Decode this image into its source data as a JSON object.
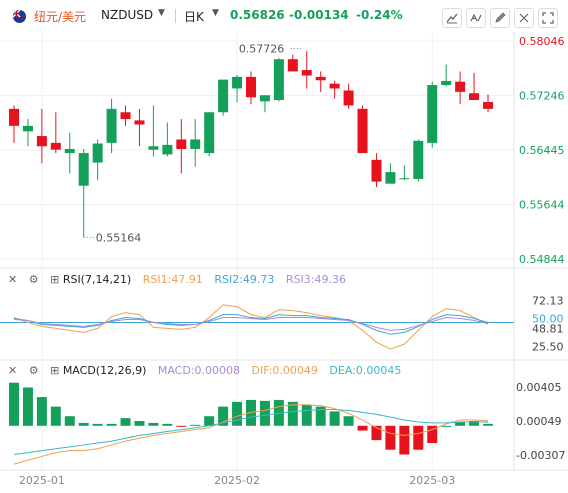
{
  "header": {
    "pair_name": "纽元/美元",
    "symbol": "NZDUSD",
    "timeframe": "日K",
    "last_price": "0.56826",
    "change": "-0.00134",
    "change_pct": "-0.24%",
    "icons": [
      "trend-icon",
      "measure-icon",
      "edit-icon",
      "eye-off-icon",
      "fullscreen-icon"
    ]
  },
  "colors": {
    "up": "#14a05a",
    "down": "#e6131f",
    "accent": "#e8561e"
  },
  "rsi_panel": {
    "title": "RSI(7,14,21)",
    "rsi1": "RSI1:47.91",
    "rsi2": "RSI2:49.73",
    "rsi3": "RSI3:49.36",
    "colors": {
      "rsi1": "#f0a050",
      "rsi2": "#3aa8d8",
      "rsi3": "#a98ad8"
    }
  },
  "macd_panel": {
    "title": "MACD(12,26,9)",
    "macd": "MACD:0.00008",
    "dif": "DIF:0.00049",
    "dea": "DEA:0.00045",
    "colors": {
      "macd": "#a98ad8",
      "dif": "#f0a050",
      "dea": "#3ab8c8"
    }
  },
  "chart_data": [
    {
      "type": "candlestick",
      "title": "NZDUSD 日K",
      "price_axis_ticks": [
        "0.58046",
        "0.57246",
        "0.56445",
        "0.55644",
        "0.54844"
      ],
      "highlighted_tick": "0.58046",
      "ylim": [
        0.5471,
        0.5818
      ],
      "annotations": [
        {
          "label": "0.57726",
          "candle": 20
        },
        {
          "label": "0.55164",
          "candle": 5
        }
      ],
      "x_labels": [
        {
          "label": "2025-01",
          "candle": 2
        },
        {
          "label": "2025-02",
          "candle": 16
        },
        {
          "label": "2025-03",
          "candle": 30
        }
      ],
      "candles": [
        {
          "o": 0.5705,
          "h": 0.571,
          "l": 0.5655,
          "c": 0.568
        },
        {
          "o": 0.5672,
          "h": 0.569,
          "l": 0.565,
          "c": 0.568
        },
        {
          "o": 0.5665,
          "h": 0.5705,
          "l": 0.5625,
          "c": 0.565
        },
        {
          "o": 0.5655,
          "h": 0.57,
          "l": 0.564,
          "c": 0.5645
        },
        {
          "o": 0.564,
          "h": 0.567,
          "l": 0.561,
          "c": 0.5646
        },
        {
          "o": 0.5592,
          "h": 0.5646,
          "l": 0.5516,
          "c": 0.564
        },
        {
          "o": 0.5626,
          "h": 0.566,
          "l": 0.56,
          "c": 0.5654
        },
        {
          "o": 0.5655,
          "h": 0.572,
          "l": 0.564,
          "c": 0.5705
        },
        {
          "o": 0.57,
          "h": 0.571,
          "l": 0.568,
          "c": 0.569
        },
        {
          "o": 0.5688,
          "h": 0.5705,
          "l": 0.565,
          "c": 0.5682
        },
        {
          "o": 0.5645,
          "h": 0.571,
          "l": 0.5635,
          "c": 0.565
        },
        {
          "o": 0.5638,
          "h": 0.5685,
          "l": 0.5635,
          "c": 0.5652
        },
        {
          "o": 0.566,
          "h": 0.569,
          "l": 0.561,
          "c": 0.5646
        },
        {
          "o": 0.5646,
          "h": 0.569,
          "l": 0.562,
          "c": 0.566
        },
        {
          "o": 0.564,
          "h": 0.57,
          "l": 0.5635,
          "c": 0.57
        },
        {
          "o": 0.57,
          "h": 0.5745,
          "l": 0.5695,
          "c": 0.5748
        },
        {
          "o": 0.5735,
          "h": 0.5755,
          "l": 0.5715,
          "c": 0.5752
        },
        {
          "o": 0.5752,
          "h": 0.576,
          "l": 0.5712,
          "c": 0.5722
        },
        {
          "o": 0.5716,
          "h": 0.5725,
          "l": 0.57,
          "c": 0.5725
        },
        {
          "o": 0.5718,
          "h": 0.578,
          "l": 0.5716,
          "c": 0.5778
        },
        {
          "o": 0.5778,
          "h": 0.5785,
          "l": 0.576,
          "c": 0.576
        },
        {
          "o": 0.5762,
          "h": 0.579,
          "l": 0.5735,
          "c": 0.5754
        },
        {
          "o": 0.5752,
          "h": 0.576,
          "l": 0.573,
          "c": 0.5747
        },
        {
          "o": 0.5742,
          "h": 0.5746,
          "l": 0.572,
          "c": 0.5735
        },
        {
          "o": 0.5732,
          "h": 0.5742,
          "l": 0.5705,
          "c": 0.571
        },
        {
          "o": 0.5705,
          "h": 0.571,
          "l": 0.564,
          "c": 0.564
        },
        {
          "o": 0.563,
          "h": 0.564,
          "l": 0.559,
          "c": 0.5598
        },
        {
          "o": 0.5595,
          "h": 0.5625,
          "l": 0.5596,
          "c": 0.5612
        },
        {
          "o": 0.5603,
          "h": 0.5622,
          "l": 0.56,
          "c": 0.5603
        },
        {
          "o": 0.5602,
          "h": 0.566,
          "l": 0.5598,
          "c": 0.5658
        },
        {
          "o": 0.5655,
          "h": 0.5745,
          "l": 0.5648,
          "c": 0.574
        },
        {
          "o": 0.574,
          "h": 0.577,
          "l": 0.5738,
          "c": 0.5746
        },
        {
          "o": 0.5745,
          "h": 0.576,
          "l": 0.5712,
          "c": 0.573
        },
        {
          "o": 0.5728,
          "h": 0.5758,
          "l": 0.5718,
          "c": 0.5718
        },
        {
          "o": 0.5715,
          "h": 0.5726,
          "l": 0.57,
          "c": 0.5705
        }
      ]
    },
    {
      "type": "line",
      "title": "RSI(7,14,21)",
      "yticks": [
        "72.13",
        "50.00",
        "48.81",
        "25.50"
      ],
      "ylim": [
        18,
        85
      ],
      "series": [
        {
          "name": "RSI1",
          "values": [
            55,
            50,
            46,
            44,
            42,
            40,
            44,
            56,
            60,
            58,
            45,
            44,
            43,
            45,
            55,
            68,
            66,
            58,
            55,
            63,
            62,
            60,
            57,
            55,
            52,
            42,
            30,
            23,
            28,
            42,
            56,
            64,
            62,
            55,
            48
          ]
        },
        {
          "name": "RSI2",
          "values": [
            54,
            52,
            48,
            47,
            46,
            45,
            47,
            52,
            55,
            54,
            50,
            48,
            47,
            48,
            52,
            58,
            58,
            55,
            54,
            58,
            57,
            57,
            55,
            54,
            53,
            48,
            42,
            38,
            40,
            46,
            53,
            58,
            57,
            54,
            50
          ]
        },
        {
          "name": "RSI3",
          "values": [
            53,
            52,
            49,
            48,
            47,
            46,
            48,
            51,
            53,
            53,
            50,
            49,
            48,
            48,
            51,
            55,
            55,
            54,
            53,
            55,
            55,
            55,
            54,
            53,
            52,
            49,
            45,
            42,
            43,
            47,
            51,
            55,
            54,
            52,
            49
          ]
        }
      ],
      "reference_line": 50.0
    },
    {
      "type": "bar+line",
      "title": "MACD(12,26,9)",
      "yticks": [
        "0.00405",
        "0.00049",
        "-0.00307"
      ],
      "ylim": [
        -0.0042,
        0.0052
      ],
      "histogram": [
        0.0045,
        0.004,
        0.003,
        0.002,
        0.001,
        0.0003,
        0.0002,
        0.0002,
        0.0008,
        0.0005,
        0.0003,
        0.0002,
        -0.0001,
        0.0001,
        0.001,
        0.002,
        0.0025,
        0.0027,
        0.0026,
        0.0027,
        0.0025,
        0.0022,
        0.002,
        0.0015,
        0.001,
        -0.0005,
        -0.0015,
        -0.0025,
        -0.003,
        -0.0025,
        -0.0018,
        0.0,
        0.0004,
        0.0005,
        0.0002
      ],
      "series": [
        {
          "name": "DIF",
          "values": [
            -0.004,
            -0.0036,
            -0.0032,
            -0.0028,
            -0.0026,
            -0.0026,
            -0.0024,
            -0.002,
            -0.0016,
            -0.0013,
            -0.001,
            -0.0008,
            -0.0006,
            -0.0004,
            -0.0002,
            0.0004,
            0.001,
            0.0014,
            0.0016,
            0.002,
            0.0022,
            0.0022,
            0.0021,
            0.0018,
            0.0013,
            0.0006,
            -0.0002,
            -0.0008,
            -0.001,
            -0.0008,
            -0.0004,
            0.0002,
            0.0006,
            0.0006,
            0.0005
          ]
        },
        {
          "name": "DEA",
          "values": [
            -0.003,
            -0.0028,
            -0.0026,
            -0.0024,
            -0.0022,
            -0.002,
            -0.0018,
            -0.0016,
            -0.0013,
            -0.001,
            -0.0008,
            -0.0006,
            -0.0004,
            -0.0002,
            0.0,
            0.0003,
            0.0006,
            0.0009,
            0.0011,
            0.0013,
            0.0015,
            0.0016,
            0.0017,
            0.0017,
            0.0016,
            0.0014,
            0.0012,
            0.0009,
            0.0006,
            0.0004,
            0.0003,
            0.0003,
            0.0004,
            0.0004,
            0.0004
          ]
        }
      ]
    }
  ]
}
